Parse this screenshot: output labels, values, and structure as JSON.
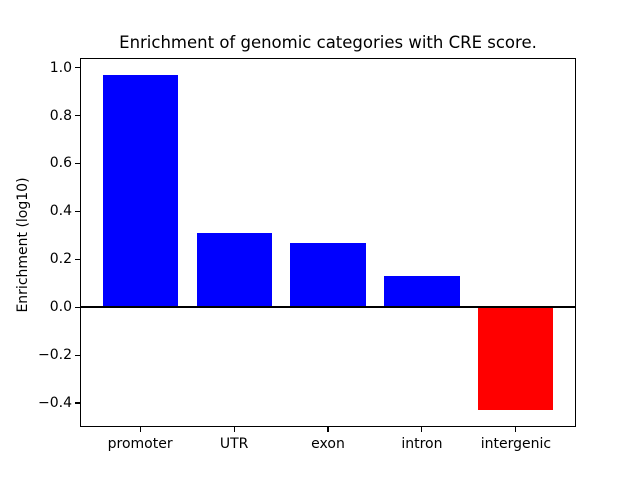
{
  "figure": {
    "background": "#ffffff",
    "axes_background": "#ffffff",
    "spine_color": "#000000"
  },
  "chart_data": {
    "type": "bar",
    "title": "Enrichment of genomic categories with CRE score.",
    "xlabel": "",
    "ylabel": "Enrichment (log10)",
    "categories": [
      "promoter",
      "UTR",
      "exon",
      "intron",
      "intergenic"
    ],
    "values": [
      0.97,
      0.31,
      0.27,
      0.13,
      -0.43
    ],
    "bar_colors": [
      "#0000ff",
      "#0000ff",
      "#0000ff",
      "#0000ff",
      "#ff0000"
    ],
    "positive_color": "#0000ff",
    "negative_color": "#ff0000",
    "bar_width": 0.8,
    "yticks": [
      1.0,
      0.8,
      0.6,
      0.4,
      0.2,
      0.0,
      -0.2,
      -0.4
    ],
    "ylim": [
      -0.5,
      1.04
    ],
    "xlim": [
      -0.64,
      4.64
    ],
    "zero_line": true,
    "grid": false,
    "legend": null
  }
}
